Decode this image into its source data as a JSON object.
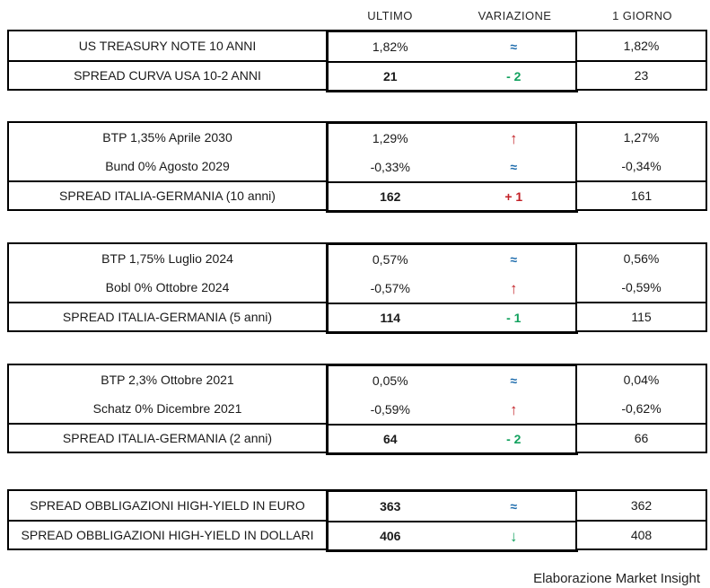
{
  "colors": {
    "up": "#C22026",
    "down": "#12A15E",
    "flat": "#1F6DAD",
    "border": "#000000",
    "text": "#1A1A1A"
  },
  "symbols": {
    "approx_icon": "≈",
    "up_arrow_icon": "↑",
    "down_arrow_icon": "↓"
  },
  "footer": {
    "text": "Elaborazione Market Insight"
  },
  "chart_data": {
    "type": "table",
    "columns": [
      "ULTIMO",
      "VARIAZIONE",
      "1 GIORNO"
    ],
    "tables": [
      {
        "id": "usa",
        "rows": [
          {
            "label": "US TREASURY NOTE 10 ANNI",
            "ultimo": "1,82%",
            "ultimo_bold": false,
            "variazione": "≈",
            "trend": "flat",
            "giorno": "1,82%",
            "divider": false
          },
          {
            "label": "SPREAD CURVA USA 10-2 ANNI",
            "ultimo": "21",
            "ultimo_bold": true,
            "variazione": "- 2",
            "trend": "down",
            "giorno": "23",
            "divider": true
          }
        ]
      },
      {
        "id": "italia-germania-10-anni",
        "rows": [
          {
            "label": "BTP 1,35% Aprile 2030",
            "ultimo": "1,29%",
            "ultimo_bold": false,
            "variazione": "↑",
            "trend": "up",
            "giorno": "1,27%",
            "divider": false
          },
          {
            "label": "Bund 0% Agosto 2029",
            "ultimo": "-0,33%",
            "ultimo_bold": false,
            "variazione": "≈",
            "trend": "flat",
            "giorno": "-0,34%",
            "divider": false
          },
          {
            "label": "SPREAD ITALIA-GERMANIA (10 anni)",
            "ultimo": "162",
            "ultimo_bold": true,
            "variazione": "+ 1",
            "trend": "up",
            "giorno": "161",
            "divider": true
          }
        ]
      },
      {
        "id": "italia-germania-5-anni",
        "rows": [
          {
            "label": "BTP 1,75% Luglio 2024",
            "ultimo": "0,57%",
            "ultimo_bold": false,
            "variazione": "≈",
            "trend": "flat",
            "giorno": "0,56%",
            "divider": false
          },
          {
            "label": "Bobl 0% Ottobre 2024",
            "ultimo": "-0,57%",
            "ultimo_bold": false,
            "variazione": "↑",
            "trend": "up",
            "giorno": "-0,59%",
            "divider": false
          },
          {
            "label": "SPREAD ITALIA-GERMANIA (5 anni)",
            "ultimo": "114",
            "ultimo_bold": true,
            "variazione": "- 1",
            "trend": "down",
            "giorno": "115",
            "divider": true
          }
        ]
      },
      {
        "id": "italia-germania-2-anni",
        "rows": [
          {
            "label": "BTP 2,3% Ottobre 2021",
            "ultimo": "0,05%",
            "ultimo_bold": false,
            "variazione": "≈",
            "trend": "flat",
            "giorno": "0,04%",
            "divider": false
          },
          {
            "label": "Schatz 0% Dicembre 2021",
            "ultimo": "-0,59%",
            "ultimo_bold": false,
            "variazione": "↑",
            "trend": "up",
            "giorno": "-0,62%",
            "divider": false
          },
          {
            "label": "SPREAD ITALIA-GERMANIA (2 anni)",
            "ultimo": "64",
            "ultimo_bold": true,
            "variazione": "- 2",
            "trend": "down",
            "giorno": "66",
            "divider": true
          }
        ]
      },
      {
        "id": "high-yield",
        "rows": [
          {
            "label": "SPREAD OBBLIGAZIONI HIGH-YIELD IN EURO",
            "ultimo": "363",
            "ultimo_bold": true,
            "variazione": "≈",
            "trend": "flat",
            "giorno": "362",
            "divider": false
          },
          {
            "label": "SPREAD OBBLIGAZIONI HIGH-YIELD IN DOLLARI",
            "ultimo": "406",
            "ultimo_bold": true,
            "variazione": "↓",
            "trend": "down",
            "giorno": "408",
            "divider": true
          }
        ]
      }
    ]
  }
}
